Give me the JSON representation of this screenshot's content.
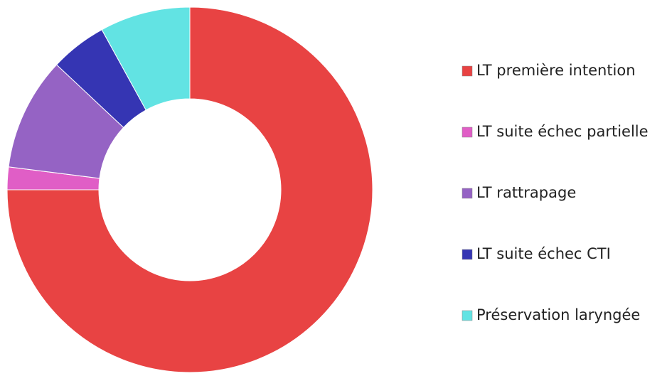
{
  "chart_data": {
    "type": "donut",
    "categories": [
      "LT première intention",
      "LT suite échec partielle",
      "LT rattrapage",
      "LT suite échec CTI",
      "Préservation laryngée"
    ],
    "values": [
      75,
      2,
      10,
      5,
      8
    ],
    "colors": [
      "#e84343",
      "#e05ec6",
      "#9563c4",
      "#3535b3",
      "#62e3e3"
    ],
    "legend": "right"
  }
}
